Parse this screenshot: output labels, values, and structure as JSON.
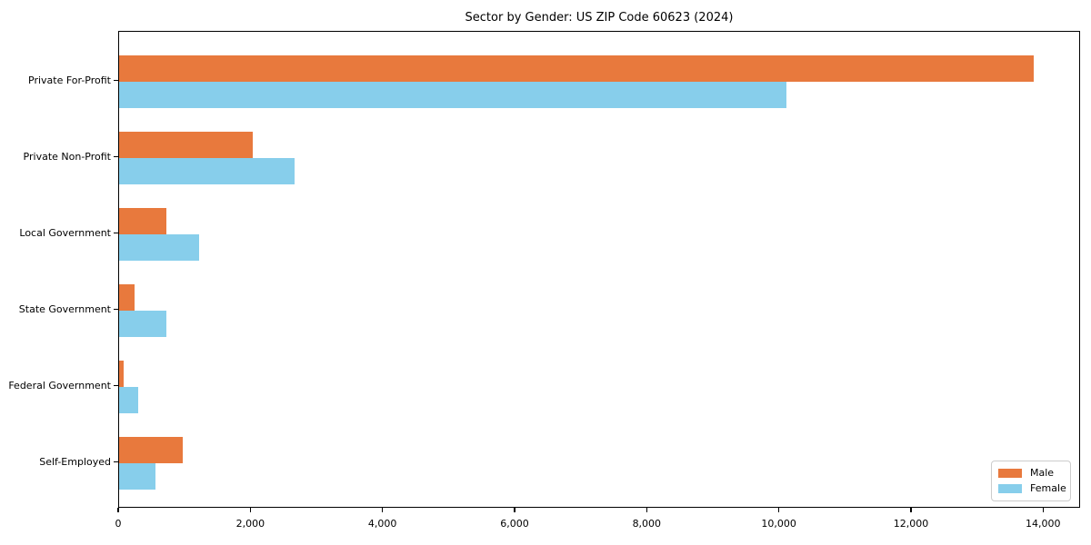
{
  "chart_data": {
    "type": "bar",
    "orientation": "horizontal",
    "title": "Sector by Gender: US ZIP Code 60623 (2024)",
    "categories": [
      "Private For-Profit",
      "Private Non-Profit",
      "Local Government",
      "State Government",
      "Federal Government",
      "Self-Employed"
    ],
    "series": [
      {
        "name": "Male",
        "color": "#e8793d",
        "values": [
          13850,
          2025,
          720,
          230,
          70,
          960
        ]
      },
      {
        "name": "Female",
        "color": "#87ceeb",
        "values": [
          10100,
          2650,
          1210,
          720,
          285,
          555
        ]
      }
    ],
    "xlabel": "",
    "ylabel": "",
    "xlim": [
      0,
      14560
    ],
    "xticks": [
      0,
      2000,
      4000,
      6000,
      8000,
      10000,
      12000,
      14000
    ],
    "xtick_labels": [
      "0",
      "2,000",
      "4,000",
      "6,000",
      "8,000",
      "10,000",
      "12,000",
      "14,000"
    ],
    "grid": false,
    "legend_position": "lower right"
  },
  "colors": {
    "axis": "#000000",
    "background": "#ffffff",
    "legend_border": "#cccccc"
  }
}
